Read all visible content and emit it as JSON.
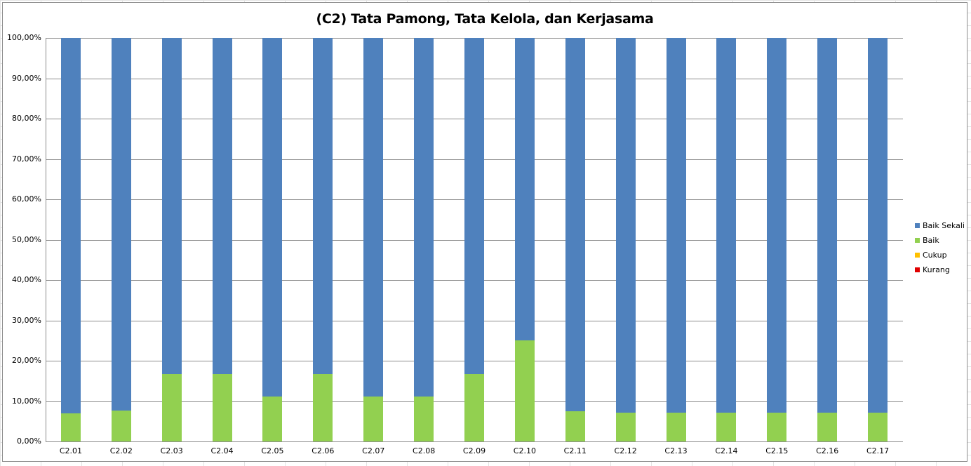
{
  "chart_data": {
    "type": "bar",
    "stacked": true,
    "percent_stacked": true,
    "title": "(C2) Tata Pamong, Tata Kelola, dan Kerjasama",
    "xlabel": "",
    "ylabel": "",
    "ylim": [
      0,
      100
    ],
    "y_ticks": [
      "0,00%",
      "10,00%",
      "20,00%",
      "30,00%",
      "40,00%",
      "50,00%",
      "60,00%",
      "70,00%",
      "80,00%",
      "90,00%",
      "100,00%"
    ],
    "grid": true,
    "legend_position": "right",
    "categories": [
      "C2.01",
      "C2.02",
      "C2.03",
      "C2.04",
      "C2.05",
      "C2.06",
      "C2.07",
      "C2.08",
      "C2.09",
      "C2.10",
      "C2.11",
      "C2.12",
      "C2.13",
      "C2.14",
      "C2.15",
      "C2.16",
      "C2.17"
    ],
    "series": [
      {
        "name": "Kurang",
        "color": "#E00000",
        "values": [
          0,
          0,
          0,
          0,
          0,
          0,
          0,
          0,
          0,
          0,
          0,
          0,
          0,
          0,
          0,
          0,
          0
        ]
      },
      {
        "name": "Cukup",
        "color": "#FFC000",
        "values": [
          0,
          0,
          0,
          0,
          0,
          0,
          0,
          0,
          0,
          0,
          0,
          0,
          0,
          0,
          0,
          0,
          0
        ]
      },
      {
        "name": "Baik",
        "color": "#92D050",
        "values": [
          6.9,
          7.69,
          16.67,
          16.67,
          11.11,
          16.67,
          11.11,
          11.11,
          16.67,
          25.0,
          7.41,
          7.14,
          7.14,
          7.14,
          7.14,
          7.14,
          7.14
        ]
      },
      {
        "name": "Baik Sekali",
        "color": "#4F81BD",
        "values": [
          93.1,
          92.31,
          83.33,
          83.33,
          88.89,
          83.33,
          88.89,
          88.89,
          83.33,
          75.0,
          92.59,
          92.86,
          92.86,
          92.86,
          92.86,
          92.86,
          92.86
        ]
      }
    ],
    "legend": [
      "Baik Sekali",
      "Baik",
      "Cukup",
      "Kurang"
    ]
  }
}
